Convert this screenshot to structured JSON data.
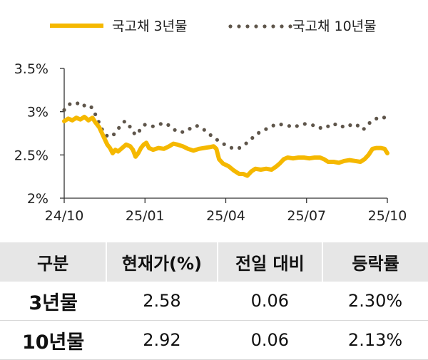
{
  "chart_data": {
    "type": "line",
    "title": "",
    "xlabel": "",
    "ylabel": "",
    "ylim": [
      2.0,
      3.5
    ],
    "yticks": [
      {
        "value": 3.5,
        "label": "3.5%"
      },
      {
        "value": 3.0,
        "label": "3%"
      },
      {
        "value": 2.5,
        "label": "2.5%"
      },
      {
        "value": 2.0,
        "label": "2%"
      }
    ],
    "xticks": [
      {
        "value": 0,
        "label": "24/10"
      },
      {
        "value": 3,
        "label": "25/01"
      },
      {
        "value": 6,
        "label": "25/04"
      },
      {
        "value": 9,
        "label": "25/07"
      },
      {
        "value": 12,
        "label": "25/10"
      }
    ],
    "legend_position": "top",
    "series": [
      {
        "name": "국고채 3년물",
        "style": "solid",
        "color": "#F5B800",
        "points": [
          [
            0.0,
            2.89
          ],
          [
            0.15,
            2.92
          ],
          [
            0.3,
            2.9
          ],
          [
            0.45,
            2.93
          ],
          [
            0.6,
            2.91
          ],
          [
            0.75,
            2.94
          ],
          [
            0.9,
            2.9
          ],
          [
            1.05,
            2.93
          ],
          [
            1.15,
            2.88
          ],
          [
            1.3,
            2.82
          ],
          [
            1.45,
            2.72
          ],
          [
            1.6,
            2.62
          ],
          [
            1.7,
            2.58
          ],
          [
            1.8,
            2.52
          ],
          [
            1.9,
            2.56
          ],
          [
            2.0,
            2.54
          ],
          [
            2.15,
            2.58
          ],
          [
            2.3,
            2.62
          ],
          [
            2.45,
            2.6
          ],
          [
            2.55,
            2.56
          ],
          [
            2.65,
            2.48
          ],
          [
            2.75,
            2.52
          ],
          [
            2.85,
            2.58
          ],
          [
            2.95,
            2.62
          ],
          [
            3.05,
            2.64
          ],
          [
            3.15,
            2.58
          ],
          [
            3.3,
            2.56
          ],
          [
            3.5,
            2.58
          ],
          [
            3.7,
            2.57
          ],
          [
            3.9,
            2.6
          ],
          [
            4.05,
            2.63
          ],
          [
            4.2,
            2.62
          ],
          [
            4.4,
            2.6
          ],
          [
            4.6,
            2.57
          ],
          [
            4.8,
            2.55
          ],
          [
            5.0,
            2.57
          ],
          [
            5.2,
            2.58
          ],
          [
            5.4,
            2.59
          ],
          [
            5.55,
            2.6
          ],
          [
            5.65,
            2.57
          ],
          [
            5.75,
            2.45
          ],
          [
            5.9,
            2.4
          ],
          [
            6.1,
            2.37
          ],
          [
            6.3,
            2.32
          ],
          [
            6.5,
            2.28
          ],
          [
            6.65,
            2.28
          ],
          [
            6.8,
            2.26
          ],
          [
            6.95,
            2.31
          ],
          [
            7.1,
            2.34
          ],
          [
            7.3,
            2.33
          ],
          [
            7.5,
            2.34
          ],
          [
            7.7,
            2.33
          ],
          [
            7.85,
            2.36
          ],
          [
            8.0,
            2.4
          ],
          [
            8.15,
            2.45
          ],
          [
            8.3,
            2.47
          ],
          [
            8.5,
            2.46
          ],
          [
            8.7,
            2.47
          ],
          [
            8.9,
            2.47
          ],
          [
            9.1,
            2.46
          ],
          [
            9.3,
            2.47
          ],
          [
            9.5,
            2.47
          ],
          [
            9.65,
            2.45
          ],
          [
            9.8,
            2.42
          ],
          [
            10.0,
            2.42
          ],
          [
            10.2,
            2.41
          ],
          [
            10.4,
            2.43
          ],
          [
            10.6,
            2.44
          ],
          [
            10.8,
            2.43
          ],
          [
            11.0,
            2.42
          ],
          [
            11.15,
            2.45
          ],
          [
            11.3,
            2.5
          ],
          [
            11.45,
            2.57
          ],
          [
            11.6,
            2.58
          ],
          [
            11.75,
            2.58
          ],
          [
            11.9,
            2.57
          ],
          [
            12.0,
            2.52
          ]
        ]
      },
      {
        "name": "국고채 10년물",
        "style": "dotted",
        "color": "#5E554A",
        "points": [
          [
            0.0,
            3.02
          ],
          [
            0.15,
            3.08
          ],
          [
            0.3,
            3.1
          ],
          [
            0.45,
            3.09
          ],
          [
            0.6,
            3.11
          ],
          [
            0.75,
            3.07
          ],
          [
            0.9,
            3.08
          ],
          [
            1.05,
            3.04
          ],
          [
            1.2,
            2.94
          ],
          [
            1.35,
            2.83
          ],
          [
            1.5,
            2.74
          ],
          [
            1.65,
            2.71
          ],
          [
            1.8,
            2.72
          ],
          [
            1.95,
            2.78
          ],
          [
            2.1,
            2.84
          ],
          [
            2.25,
            2.89
          ],
          [
            2.4,
            2.85
          ],
          [
            2.55,
            2.76
          ],
          [
            2.7,
            2.73
          ],
          [
            2.85,
            2.81
          ],
          [
            3.0,
            2.85
          ],
          [
            3.15,
            2.84
          ],
          [
            3.3,
            2.83
          ],
          [
            3.5,
            2.85
          ],
          [
            3.7,
            2.87
          ],
          [
            3.9,
            2.84
          ],
          [
            4.1,
            2.79
          ],
          [
            4.3,
            2.76
          ],
          [
            4.5,
            2.77
          ],
          [
            4.7,
            2.81
          ],
          [
            4.9,
            2.84
          ],
          [
            5.1,
            2.81
          ],
          [
            5.3,
            2.77
          ],
          [
            5.5,
            2.71
          ],
          [
            5.7,
            2.67
          ],
          [
            5.9,
            2.63
          ],
          [
            6.1,
            2.6
          ],
          [
            6.3,
            2.57
          ],
          [
            6.5,
            2.58
          ],
          [
            6.7,
            2.62
          ],
          [
            6.9,
            2.67
          ],
          [
            7.1,
            2.73
          ],
          [
            7.3,
            2.77
          ],
          [
            7.5,
            2.8
          ],
          [
            7.7,
            2.83
          ],
          [
            7.9,
            2.86
          ],
          [
            8.1,
            2.85
          ],
          [
            8.3,
            2.84
          ],
          [
            8.5,
            2.82
          ],
          [
            8.7,
            2.84
          ],
          [
            8.9,
            2.86
          ],
          [
            9.1,
            2.85
          ],
          [
            9.3,
            2.84
          ],
          [
            9.5,
            2.81
          ],
          [
            9.7,
            2.84
          ],
          [
            9.9,
            2.82
          ],
          [
            10.1,
            2.86
          ],
          [
            10.3,
            2.83
          ],
          [
            10.5,
            2.82
          ],
          [
            10.7,
            2.86
          ],
          [
            10.9,
            2.84
          ],
          [
            11.1,
            2.79
          ],
          [
            11.3,
            2.86
          ],
          [
            11.5,
            2.91
          ],
          [
            11.7,
            2.93
          ],
          [
            11.85,
            2.94
          ],
          [
            12.0,
            2.9
          ]
        ]
      }
    ]
  },
  "table": {
    "headers": [
      "구분",
      "현재가(%)",
      "전일 대비",
      "등락률"
    ],
    "rows": [
      {
        "label": "3년물",
        "price": "2.58",
        "change": "0.06",
        "rate": "2.30%"
      },
      {
        "label": "10년물",
        "price": "2.92",
        "change": "0.06",
        "rate": "2.13%"
      }
    ]
  }
}
